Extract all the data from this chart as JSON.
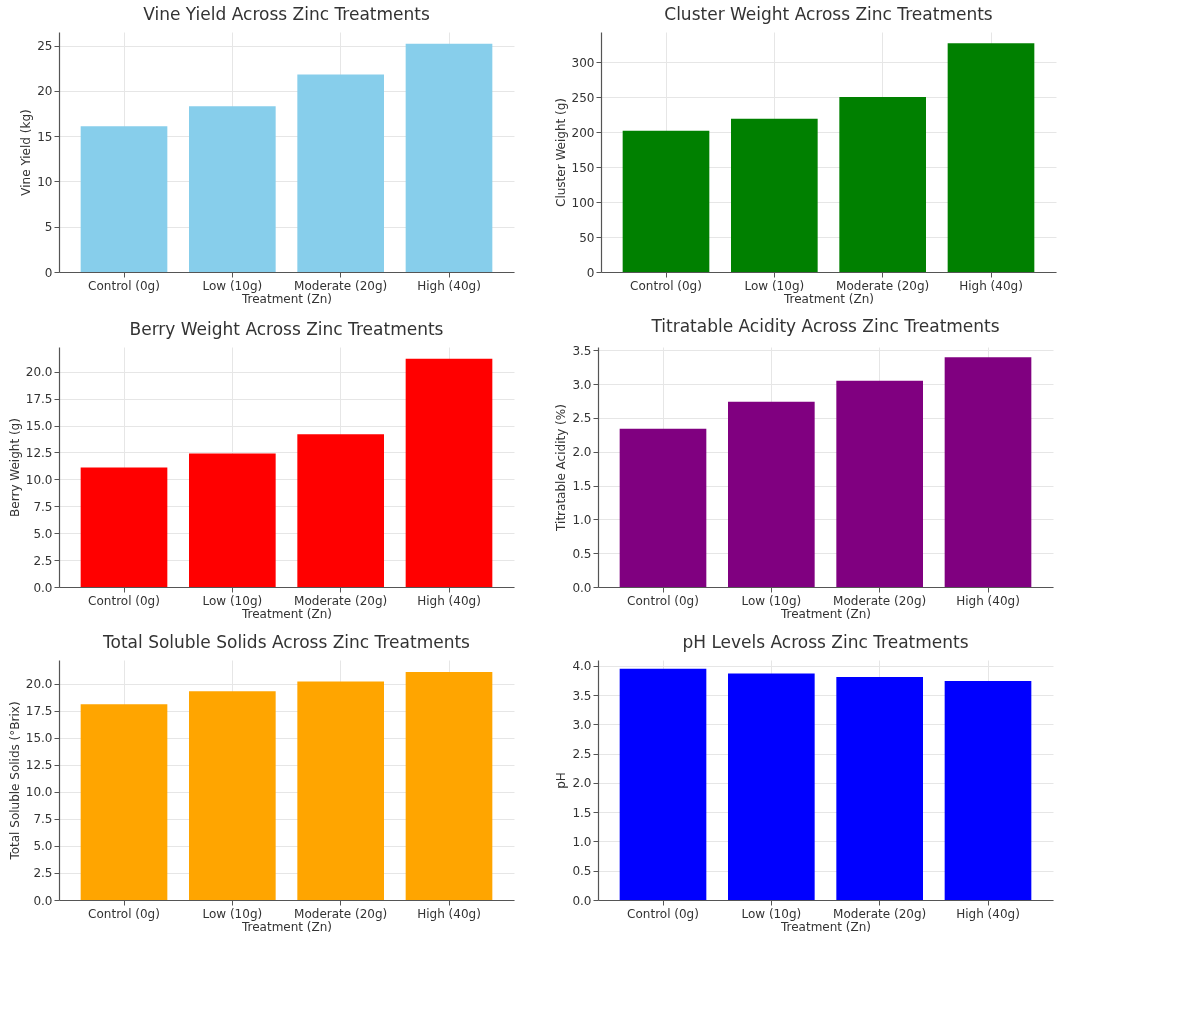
{
  "chart_data": [
    {
      "type": "bar",
      "title": "Vine Yield Across Zinc Treatments",
      "xlabel": "Treatment (Zn)",
      "ylabel": "Vine Yield (kg)",
      "categories": [
        "Control (0g)",
        "Low (10g)",
        "Moderate (20g)",
        "High (40g)"
      ],
      "values": [
        16.1,
        18.3,
        21.8,
        25.2
      ],
      "color": "#87ceeb",
      "ylim": [
        0,
        26.5
      ],
      "yticks": [
        0,
        5,
        10,
        15,
        20,
        25
      ],
      "grid": true
    },
    {
      "type": "bar",
      "title": "Cluster Weight Across Zinc Treatments",
      "xlabel": "Treatment (Zn)",
      "ylabel": "Cluster Weight (g)",
      "categories": [
        "Control (0g)",
        "Low (10g)",
        "Moderate (20g)",
        "High (40g)"
      ],
      "values": [
        202,
        219,
        250,
        327
      ],
      "color": "#008000",
      "ylim": [
        0,
        343
      ],
      "yticks": [
        0,
        50,
        100,
        150,
        200,
        250,
        300
      ],
      "grid": true
    },
    {
      "type": "bar",
      "title": "Berry Weight Across Zinc Treatments",
      "xlabel": "Treatment (Zn)",
      "ylabel": "Berry Weight (g)",
      "categories": [
        "Control (0g)",
        "Low (10g)",
        "Moderate (20g)",
        "High (40g)"
      ],
      "values": [
        11.1,
        12.4,
        14.2,
        21.2
      ],
      "color": "#ff0000",
      "ylim": [
        0,
        22.3
      ],
      "yticks": [
        {
          "value": 0,
          "label": "0.0"
        },
        {
          "value": 2.5,
          "label": "2.5"
        },
        {
          "value": 5,
          "label": "5.0"
        },
        {
          "value": 7.5,
          "label": "7.5"
        },
        {
          "value": 10,
          "label": "10.0"
        },
        {
          "value": 12.5,
          "label": "12.5"
        },
        {
          "value": 15,
          "label": "15.0"
        },
        {
          "value": 17.5,
          "label": "17.5"
        },
        {
          "value": 20,
          "label": "20.0"
        }
      ],
      "grid": true
    },
    {
      "type": "bar",
      "title": "Titratable Acidity Across Zinc Treatments",
      "xlabel": "Treatment (Zn)",
      "ylabel": "Titratable Acidity (%)",
      "categories": [
        "Control (0g)",
        "Low (10g)",
        "Moderate (20g)",
        "High (40g)"
      ],
      "values": [
        2.34,
        2.74,
        3.05,
        3.4
      ],
      "color": "#800080",
      "ylim": [
        0,
        3.55
      ],
      "yticks": [
        {
          "value": 0,
          "label": "0.0"
        },
        {
          "value": 0.5,
          "label": "0.5"
        },
        {
          "value": 1,
          "label": "1.0"
        },
        {
          "value": 1.5,
          "label": "1.5"
        },
        {
          "value": 2,
          "label": "2.0"
        },
        {
          "value": 2.5,
          "label": "2.5"
        },
        {
          "value": 3,
          "label": "3.0"
        },
        {
          "value": 3.5,
          "label": "3.5"
        }
      ],
      "grid": true
    },
    {
      "type": "bar",
      "title": "Total Soluble Solids Across Zinc Treatments",
      "xlabel": "Treatment (Zn)",
      "ylabel": "Total Soluble Solids (°Brix)",
      "categories": [
        "Control (0g)",
        "Low (10g)",
        "Moderate (20g)",
        "High (40g)"
      ],
      "values": [
        18.1,
        19.3,
        20.2,
        21.1
      ],
      "color": "#ffa500",
      "ylim": [
        0,
        22.2
      ],
      "yticks": [
        {
          "value": 0,
          "label": "0.0"
        },
        {
          "value": 2.5,
          "label": "2.5"
        },
        {
          "value": 5,
          "label": "5.0"
        },
        {
          "value": 7.5,
          "label": "7.5"
        },
        {
          "value": 10,
          "label": "10.0"
        },
        {
          "value": 12.5,
          "label": "12.5"
        },
        {
          "value": 15,
          "label": "15.0"
        },
        {
          "value": 17.5,
          "label": "17.5"
        },
        {
          "value": 20,
          "label": "20.0"
        }
      ],
      "grid": true
    },
    {
      "type": "bar",
      "title": "pH Levels Across Zinc Treatments",
      "xlabel": "Treatment (Zn)",
      "ylabel": "pH",
      "categories": [
        "Control (0g)",
        "Low (10g)",
        "Moderate (20g)",
        "High (40g)"
      ],
      "values": [
        3.95,
        3.87,
        3.81,
        3.74
      ],
      "color": "#0000ff",
      "ylim": [
        0,
        4.1
      ],
      "yticks": [
        {
          "value": 0,
          "label": "0.0"
        },
        {
          "value": 0.5,
          "label": "0.5"
        },
        {
          "value": 1,
          "label": "1.0"
        },
        {
          "value": 1.5,
          "label": "1.5"
        },
        {
          "value": 2,
          "label": "2.0"
        },
        {
          "value": 2.5,
          "label": "2.5"
        },
        {
          "value": 3,
          "label": "3.0"
        },
        {
          "value": 3.5,
          "label": "3.5"
        },
        {
          "value": 4,
          "label": "4.0"
        }
      ],
      "grid": true
    }
  ]
}
